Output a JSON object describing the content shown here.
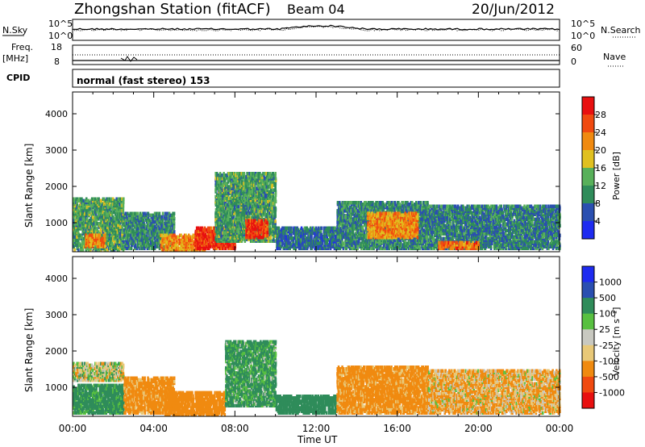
{
  "header": {
    "station": "Zhongshan Station (fitACF)",
    "beam": "Beam 04",
    "date": "20/Jun/2012"
  },
  "strips": {
    "nsky_label": "N.Sky",
    "nsearch_label": "N.Search",
    "noise_ticks": [
      "10^5",
      "10^0"
    ],
    "freq_label": "Freq.",
    "freq_unit": "[MHz]",
    "freq_ticks": [
      "18",
      "8"
    ],
    "nave_label": "Nave",
    "nave_ticks": [
      "60",
      "0"
    ],
    "cpid_label": "CPID",
    "cpid_text": "normal (fast stereo) 153"
  },
  "colors": {
    "power_scale": [
      "#1e2bf0",
      "#2a4fb0",
      "#2f8c5a",
      "#58b05a",
      "#e0c020",
      "#f08a10",
      "#f04a10",
      "#e81010"
    ],
    "velocity_scale": [
      "#e81010",
      "#f04a10",
      "#f08a10",
      "#e8c878",
      "#c8c8c0",
      "#58c040",
      "#2f8c5a",
      "#2a4fb0",
      "#1e2bf0"
    ]
  },
  "chart_data": [
    {
      "type": "heatmap",
      "name": "power",
      "ylabel": "Slant Range [km]",
      "xlabel": "",
      "x_ticks": [
        "00:00",
        "04:00",
        "08:00",
        "12:00",
        "16:00",
        "20:00",
        "00:00"
      ],
      "y_ticks": [
        1000,
        2000,
        3000,
        4000
      ],
      "ylim": [
        200,
        4600
      ],
      "xlim_hours": [
        0,
        24
      ],
      "colorbar_label": "Power [dB]",
      "colorbar_ticks": [
        4,
        8,
        12,
        16,
        20,
        24,
        28
      ],
      "color_range": [
        0,
        32
      ],
      "echo_regions": [
        {
          "t0": 0.0,
          "t1": 2.5,
          "r0": 250,
          "r1": 1700,
          "level": 12
        },
        {
          "t0": 0.6,
          "t1": 1.6,
          "r0": 350,
          "r1": 700,
          "level": 22
        },
        {
          "t0": 2.5,
          "t1": 5.0,
          "r0": 300,
          "r1": 1300,
          "level": 10
        },
        {
          "t0": 4.3,
          "t1": 6.5,
          "r0": 250,
          "r1": 700,
          "level": 22
        },
        {
          "t0": 6.0,
          "t1": 8.0,
          "r0": 300,
          "r1": 900,
          "level": 28
        },
        {
          "t0": 7.0,
          "t1": 10.0,
          "r0": 500,
          "r1": 2400,
          "level": 12
        },
        {
          "t0": 8.5,
          "t1": 9.6,
          "r0": 600,
          "r1": 1100,
          "level": 28
        },
        {
          "t0": 10.0,
          "t1": 13.0,
          "r0": 300,
          "r1": 900,
          "level": 8
        },
        {
          "t0": 13.0,
          "t1": 17.5,
          "r0": 300,
          "r1": 1600,
          "level": 10
        },
        {
          "t0": 14.5,
          "t1": 17.0,
          "r0": 600,
          "r1": 1300,
          "level": 22
        },
        {
          "t0": 17.5,
          "t1": 24.0,
          "r0": 300,
          "r1": 1500,
          "level": 9
        },
        {
          "t0": 18.0,
          "t1": 20.0,
          "r0": 300,
          "r1": 500,
          "level": 24
        }
      ]
    },
    {
      "type": "heatmap",
      "name": "velocity",
      "ylabel": "Slant Range [km]",
      "xlabel": "Time UT",
      "x_ticks": [
        "00:00",
        "04:00",
        "08:00",
        "12:00",
        "16:00",
        "20:00",
        "00:00"
      ],
      "y_ticks": [
        1000,
        2000,
        3000,
        4000
      ],
      "ylim": [
        200,
        4600
      ],
      "xlim_hours": [
        0,
        24
      ],
      "colorbar_label": "Velocity [m s⁻¹]",
      "colorbar_ticks": [
        "1000",
        "500",
        "100",
        "25",
        "-25",
        "-100",
        "-500",
        "-1000"
      ],
      "echo_regions": [
        {
          "t0": 0.0,
          "t1": 2.5,
          "r0": 1200,
          "r1": 1700,
          "level": 0
        },
        {
          "t0": 0.0,
          "t1": 2.5,
          "r0": 300,
          "r1": 1100,
          "level": 200
        },
        {
          "t0": 2.5,
          "t1": 5.0,
          "r0": 300,
          "r1": 1300,
          "level": -200
        },
        {
          "t0": 4.5,
          "t1": 7.5,
          "r0": 250,
          "r1": 900,
          "level": -300
        },
        {
          "t0": 7.5,
          "t1": 10.0,
          "r0": 500,
          "r1": 2300,
          "level": 150
        },
        {
          "t0": 10.0,
          "t1": 13.0,
          "r0": 300,
          "r1": 800,
          "level": 300
        },
        {
          "t0": 13.0,
          "t1": 17.5,
          "r0": 300,
          "r1": 1600,
          "level": -200
        },
        {
          "t0": 17.5,
          "t1": 24.0,
          "r0": 300,
          "r1": 1500,
          "level": -100
        }
      ]
    }
  ]
}
